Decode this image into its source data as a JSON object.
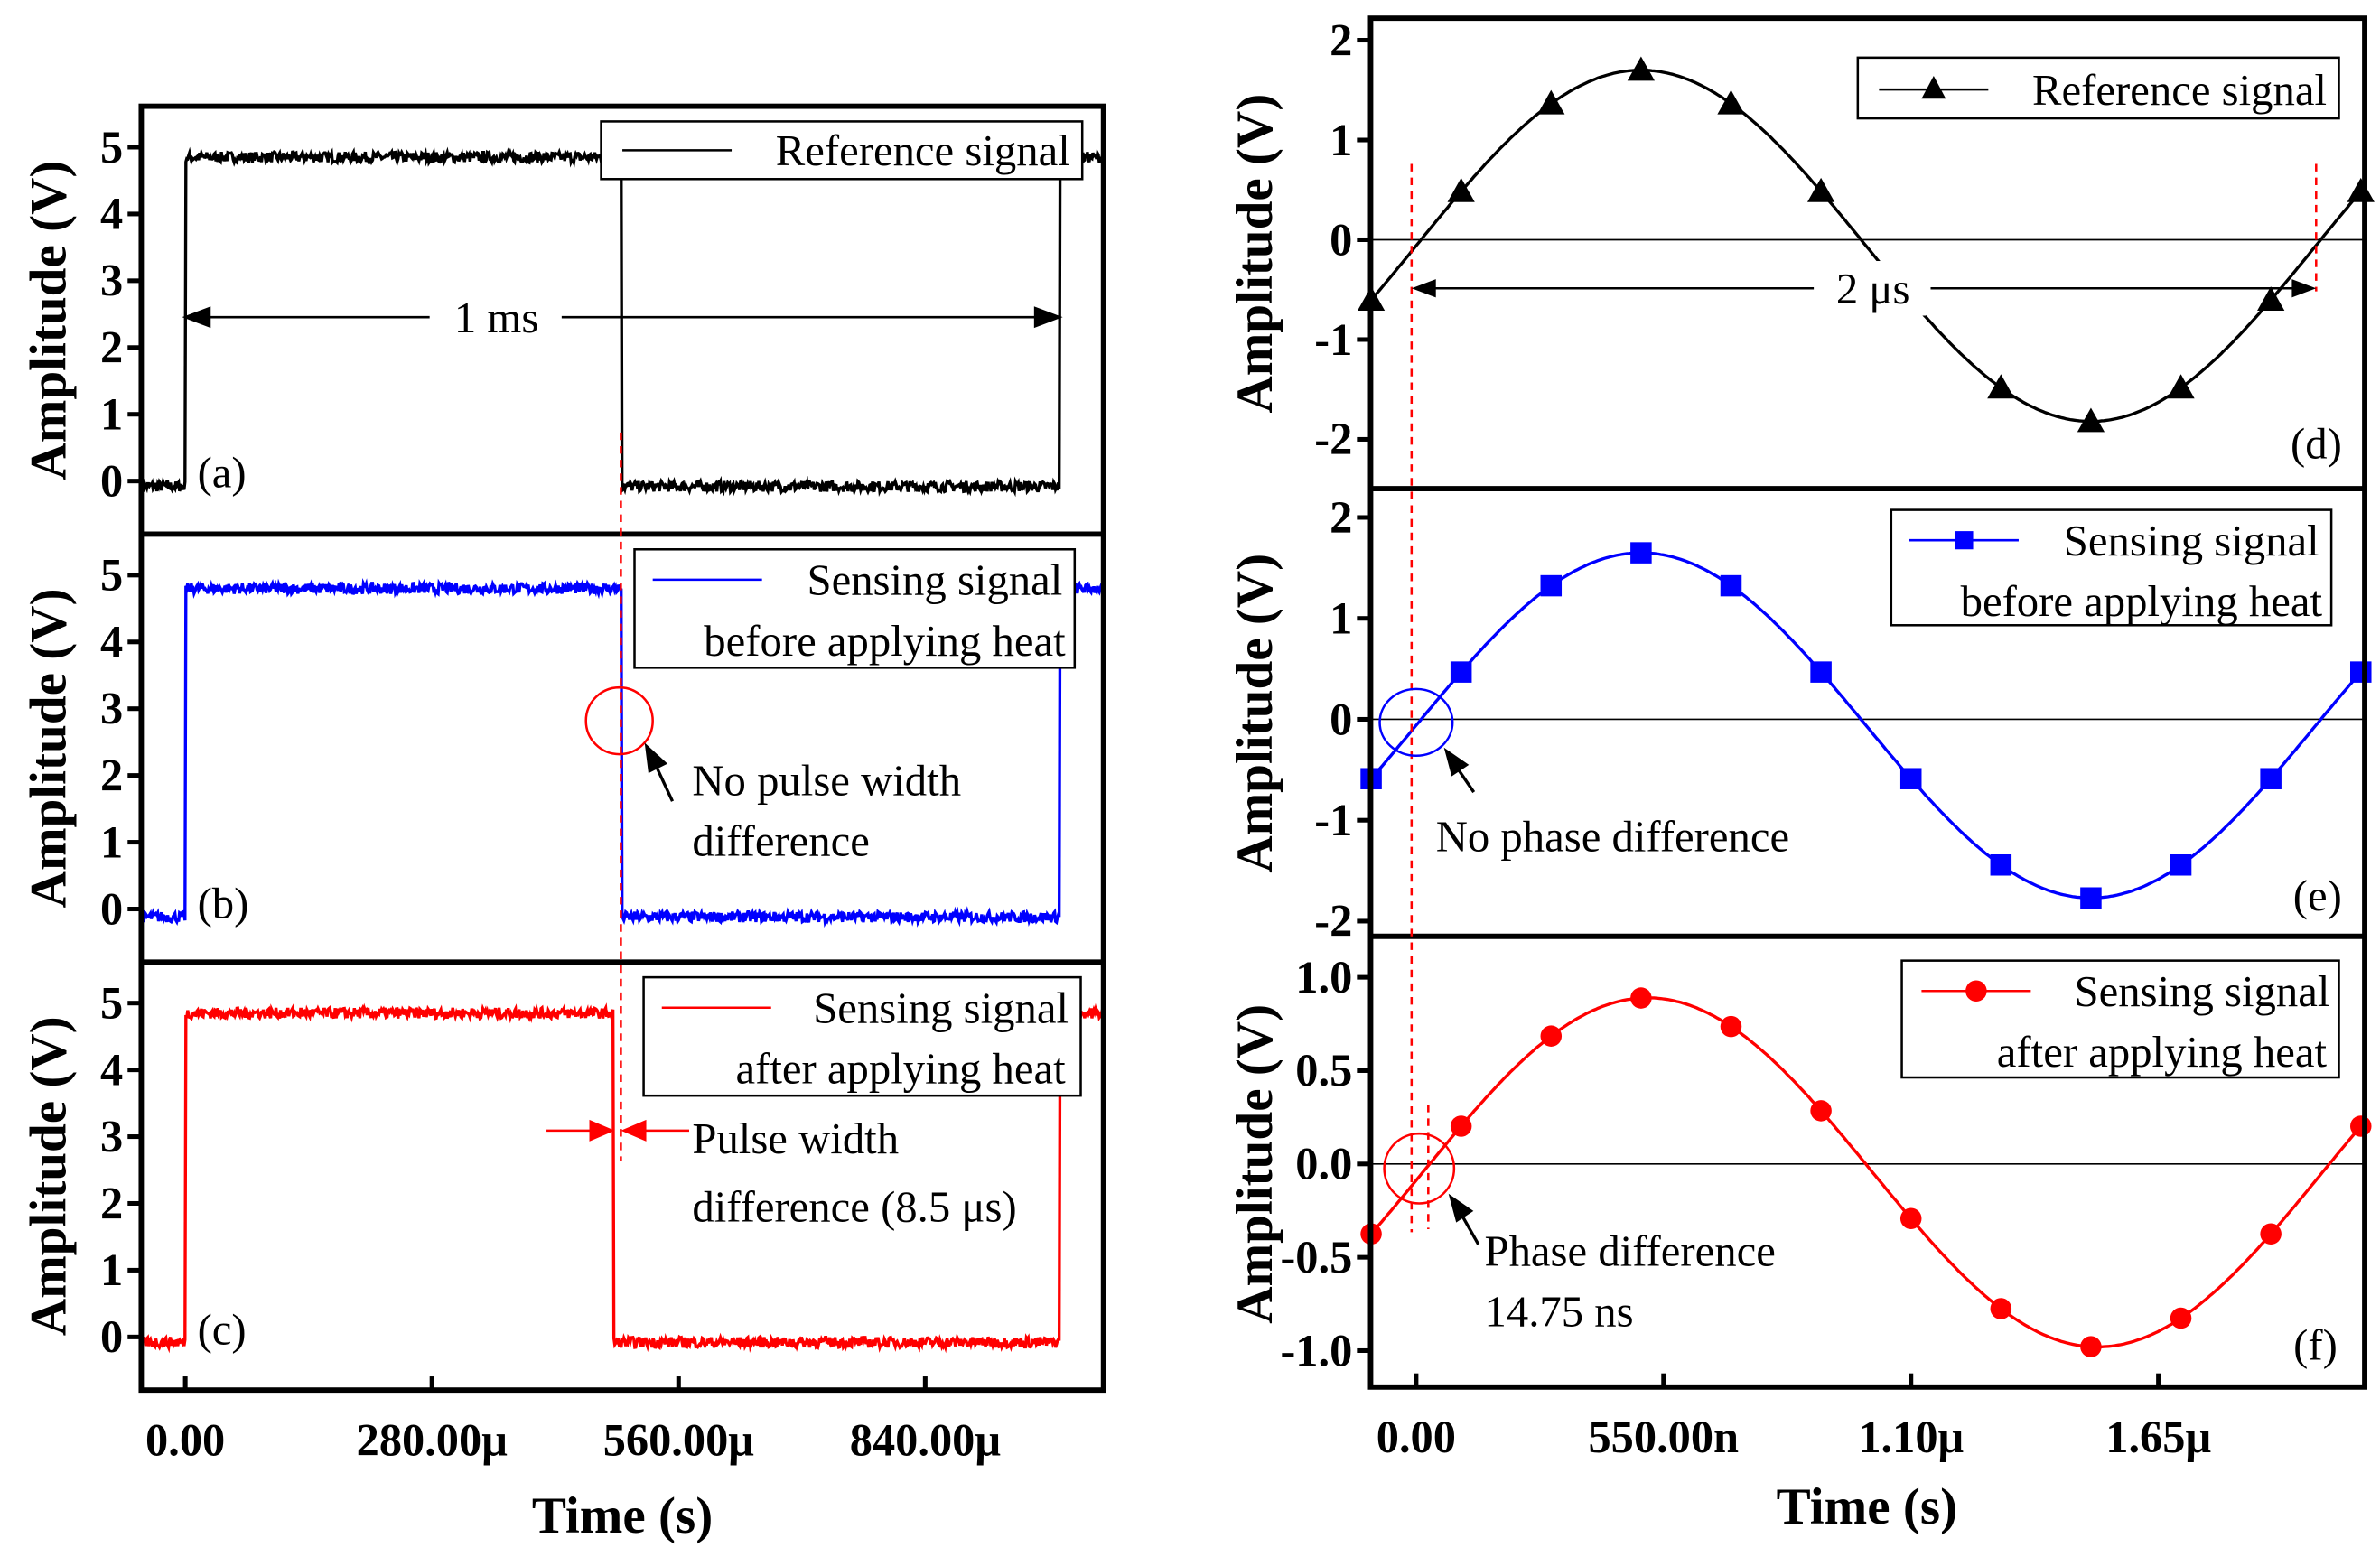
{
  "colors": {
    "reference": "#000000",
    "before_heat": "#0000ff",
    "after_heat": "#ff0000"
  },
  "chart_data": [
    {
      "panel": "(a)",
      "type": "line",
      "title": "",
      "xlabel": "Time (s)",
      "ylabel": "Amplitude (V)",
      "xlim_us": [
        -50,
        1042
      ],
      "ylim": [
        -0.8,
        5.6
      ],
      "xticks": [
        "0.00",
        "280.00μ",
        "560.00μ",
        "840.00μ"
      ],
      "xtick_values_us": [
        0,
        280,
        560,
        840
      ],
      "yticks": [
        "0",
        "1",
        "2",
        "3",
        "4",
        "5"
      ],
      "series": [
        {
          "name": "Reference signal",
          "color": "#000000",
          "high_V": 4.85,
          "low_V": -0.08,
          "rise_us": 0,
          "fall_us": 495,
          "next_rise_us": 993
        }
      ],
      "annotations": [
        "1 ms"
      ],
      "legend": "top-right"
    },
    {
      "panel": "(b)",
      "type": "line",
      "xlabel": "Time (s)",
      "ylabel": "Amplitude (V)",
      "xlim_us": [
        -50,
        1042
      ],
      "ylim": [
        -0.8,
        5.6
      ],
      "xticks": [
        "0.00",
        "280.00μ",
        "560.00μ",
        "840.00μ"
      ],
      "yticks": [
        "0",
        "1",
        "2",
        "3",
        "4",
        "5"
      ],
      "series": [
        {
          "name": "Sensing signal before applying heat",
          "legend_lines": [
            "Sensing signal",
            "before applying heat"
          ],
          "color": "#0000ff",
          "high_V": 4.8,
          "low_V": -0.12,
          "rise_us": 0,
          "fall_us": 495,
          "next_rise_us": 993
        }
      ],
      "annotations": [
        "No pulse width",
        "difference"
      ],
      "legend": "top-right"
    },
    {
      "panel": "(c)",
      "type": "line",
      "xlabel": "Time (s)",
      "ylabel": "Amplitude (V)",
      "xlim_us": [
        -50,
        1042
      ],
      "ylim": [
        -0.8,
        5.6
      ],
      "xticks": [
        "0.00",
        "280.00μ",
        "560.00μ",
        "840.00μ"
      ],
      "yticks": [
        "0",
        "1",
        "2",
        "3",
        "4",
        "5"
      ],
      "series": [
        {
          "name": "Sensing signal after applying heat",
          "legend_lines": [
            "Sensing signal",
            "after applying heat"
          ],
          "color": "#ff0000",
          "high_V": 4.85,
          "low_V": -0.08,
          "rise_us": 0,
          "fall_us": 486.5,
          "next_rise_us": 993
        }
      ],
      "annotations": [
        "Pulse width",
        "difference (8.5 μs)"
      ],
      "legend": "top-right"
    },
    {
      "panel": "(d)",
      "type": "line",
      "xlabel": "Time (s)",
      "ylabel": "Amplitude (V)",
      "xlim_ns": [
        -101,
        2109
      ],
      "ylim": [
        -2.5,
        2.2
      ],
      "xticks": [
        "0.00",
        "550.00n",
        "1.10μ",
        "1.65μ"
      ],
      "xtick_values_ns": [
        0,
        550,
        1100,
        1650
      ],
      "yticks": [
        "-2",
        "-1",
        "0",
        "1",
        "2"
      ],
      "ytick_values": [
        -2,
        -1,
        0,
        1,
        2
      ],
      "series": [
        {
          "name": "Reference signal",
          "color": "#000000",
          "marker": "triangle",
          "amplitude_V": 1.76,
          "offset_V": -0.06,
          "period_ns": 2000,
          "phase_shift_ns": 0,
          "marker_x_ns": [
            -100,
            100,
            300,
            500,
            700,
            900,
            1100,
            1300,
            1500,
            1700,
            1900,
            2100
          ]
        }
      ],
      "annotations": [
        "2 μs"
      ],
      "legend": "top-right"
    },
    {
      "panel": "(e)",
      "type": "line",
      "xlabel": "Time (s)",
      "ylabel": "Amplitude (V)",
      "xlim_ns": [
        -101,
        2109
      ],
      "ylim": [
        -2.2,
        2.5
      ],
      "xticks": [
        "0.00",
        "550.00n",
        "1.10μ",
        "1.65μ"
      ],
      "yticks": [
        "-2",
        "-1",
        "0",
        "1",
        "2"
      ],
      "ytick_values": [
        -2,
        -1,
        0,
        1,
        2
      ],
      "series": [
        {
          "name": "Sensing signal before applying heat",
          "legend_lines": [
            "Sensing signal",
            "before applying heat"
          ],
          "color": "#0000ff",
          "marker": "square",
          "amplitude_V": 1.71,
          "offset_V": -0.06,
          "period_ns": 2000,
          "phase_shift_ns": 0,
          "marker_x_ns": [
            -100,
            100,
            300,
            500,
            700,
            900,
            1100,
            1300,
            1500,
            1700,
            1900,
            2100
          ]
        }
      ],
      "annotations": [
        "No phase difference"
      ],
      "legend": "top-right"
    },
    {
      "panel": "(f)",
      "type": "line",
      "xlabel": "Time (s)",
      "ylabel": "Amplitude (V)",
      "xlim_ns": [
        -101,
        2109
      ],
      "ylim": [
        -1.2,
        1.2
      ],
      "xticks": [
        "0.00",
        "550.00n",
        "1.10μ",
        "1.65μ"
      ],
      "yticks": [
        "-1.0",
        "-0.5",
        "0.0",
        "0.5",
        "1.0"
      ],
      "ytick_values": [
        -1,
        -0.5,
        0,
        0.5,
        1
      ],
      "series": [
        {
          "name": "Sensing signal after applying heat",
          "legend_lines": [
            "Sensing signal",
            "after applying heat"
          ],
          "color": "#ff0000",
          "marker": "circle",
          "amplitude_V": 0.935,
          "offset_V": -0.045,
          "period_ns": 2000,
          "phase_shift_ns": 14.75,
          "marker_x_ns": [
            -100,
            100,
            300,
            500,
            700,
            900,
            1100,
            1300,
            1500,
            1700,
            1900,
            2100
          ]
        }
      ],
      "annotations": [
        "Phase difference",
        "14.75 ns"
      ],
      "legend": "top-right"
    }
  ]
}
